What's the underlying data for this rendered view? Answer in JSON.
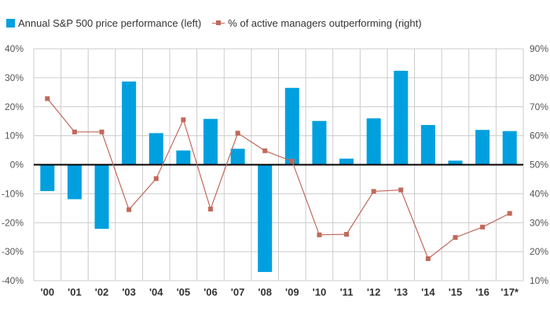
{
  "legend": {
    "bar_label": "Annual S&P 500 price performance (left)",
    "line_label": "% of active managers outperforming (right)"
  },
  "colors": {
    "bar": "#00A0DF",
    "line": "#C0695B",
    "grid": "#cccccc",
    "axis": "#000000"
  },
  "chart_data": {
    "type": "bar",
    "categories": [
      "'00",
      "'01",
      "'02",
      "'03",
      "'04",
      "'05",
      "'06",
      "'07",
      "'08",
      "'09",
      "'10",
      "'11",
      "'12",
      "'13",
      "'14",
      "'15",
      "'16",
      "'17*"
    ],
    "series": [
      {
        "name": "Annual S&P 500 price performance (left)",
        "type": "bar",
        "axis": "left",
        "values": [
          -9.1,
          -11.9,
          -22.1,
          28.7,
          10.9,
          4.9,
          15.8,
          5.5,
          -37.0,
          26.5,
          15.1,
          2.1,
          16.0,
          32.4,
          13.7,
          1.4,
          12.0,
          11.6
        ]
      },
      {
        "name": "% of active managers outperforming (right)",
        "type": "line",
        "axis": "right",
        "values": [
          72.8,
          61.3,
          61.3,
          34.5,
          45.2,
          65.5,
          34.7,
          60.9,
          54.8,
          51.2,
          25.8,
          26.0,
          40.8,
          41.3,
          17.6,
          24.9,
          28.5,
          33.2
        ]
      }
    ],
    "left_axis": {
      "ylim": [
        -40,
        40
      ],
      "ticks": [
        "-40%",
        "-30%",
        "-20%",
        "-10%",
        "0%",
        "10%",
        "20%",
        "30%",
        "40%"
      ]
    },
    "right_axis": {
      "ylim": [
        10,
        90
      ],
      "ticks": [
        "10%",
        "20%",
        "30%",
        "40%",
        "50%",
        "60%",
        "70%",
        "80%",
        "90%"
      ]
    },
    "grid": true,
    "legend_position": "top-left"
  }
}
